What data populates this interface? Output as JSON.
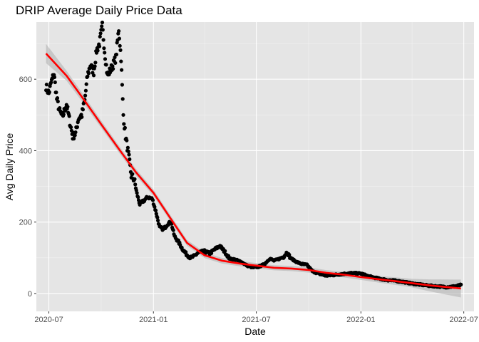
{
  "chart_data": {
    "type": "scatter",
    "title": "DRIP Average Daily Price Data",
    "xlabel": "Date",
    "ylabel": "Avg Daily Price",
    "x_ticks": [
      "2020-07",
      "2021-01",
      "2021-07",
      "2022-01",
      "2022-07"
    ],
    "y_ticks": [
      0,
      200,
      400,
      600
    ],
    "xlim": [
      "2020-06-09",
      "2022-07-19"
    ],
    "ylim": [
      -50,
      760
    ],
    "grid": true,
    "colors": {
      "panel": "#e5e5e5",
      "grid_major": "#ffffff",
      "points": "#000000",
      "smooth": "#ff0000",
      "band": "#b3b3b3"
    },
    "points_anchors": [
      [
        "2020-06-26",
        580
      ],
      [
        "2020-07-01",
        560
      ],
      [
        "2020-07-05",
        590
      ],
      [
        "2020-07-10",
        615
      ],
      [
        "2020-07-15",
        545
      ],
      [
        "2020-07-20",
        510
      ],
      [
        "2020-07-25",
        495
      ],
      [
        "2020-08-01",
        530
      ],
      [
        "2020-08-07",
        480
      ],
      [
        "2020-08-12",
        440
      ],
      [
        "2020-08-17",
        448
      ],
      [
        "2020-08-22",
        490
      ],
      [
        "2020-08-28",
        500
      ],
      [
        "2020-09-02",
        540
      ],
      [
        "2020-09-07",
        610
      ],
      [
        "2020-09-12",
        640
      ],
      [
        "2020-09-18",
        620
      ],
      [
        "2020-09-23",
        680
      ],
      [
        "2020-09-28",
        700
      ],
      [
        "2020-10-03",
        750
      ],
      [
        "2020-10-07",
        680
      ],
      [
        "2020-10-12",
        610
      ],
      [
        "2020-10-17",
        625
      ],
      [
        "2020-10-22",
        640
      ],
      [
        "2020-10-27",
        660
      ],
      [
        "2020-11-01",
        740
      ],
      [
        "2020-11-05",
        660
      ],
      [
        "2020-11-09",
        500
      ],
      [
        "2020-11-13",
        440
      ],
      [
        "2020-11-18",
        390
      ],
      [
        "2020-11-23",
        330
      ],
      [
        "2020-11-28",
        320
      ],
      [
        "2020-12-03",
        280
      ],
      [
        "2020-12-08",
        250
      ],
      [
        "2020-12-15",
        260
      ],
      [
        "2020-12-22",
        270
      ],
      [
        "2020-12-30",
        265
      ],
      [
        "2021-01-06",
        225
      ],
      [
        "2021-01-12",
        185
      ],
      [
        "2021-01-19",
        180
      ],
      [
        "2021-01-26",
        195
      ],
      [
        "2021-02-01",
        200
      ],
      [
        "2021-02-07",
        160
      ],
      [
        "2021-02-14",
        145
      ],
      [
        "2021-02-21",
        125
      ],
      [
        "2021-02-28",
        110
      ],
      [
        "2021-03-07",
        100
      ],
      [
        "2021-03-14",
        105
      ],
      [
        "2021-03-21",
        115
      ],
      [
        "2021-04-01",
        118
      ],
      [
        "2021-04-10",
        112
      ],
      [
        "2021-04-20",
        125
      ],
      [
        "2021-04-28",
        133
      ],
      [
        "2021-05-06",
        118
      ],
      [
        "2021-05-15",
        98
      ],
      [
        "2021-05-25",
        95
      ],
      [
        "2021-06-05",
        88
      ],
      [
        "2021-06-15",
        78
      ],
      [
        "2021-06-25",
        73
      ],
      [
        "2021-07-05",
        75
      ],
      [
        "2021-07-15",
        82
      ],
      [
        "2021-07-25",
        98
      ],
      [
        "2021-08-01",
        92
      ],
      [
        "2021-08-10",
        97
      ],
      [
        "2021-08-18",
        103
      ],
      [
        "2021-08-24",
        116
      ],
      [
        "2021-08-30",
        100
      ],
      [
        "2021-09-08",
        90
      ],
      [
        "2021-09-18",
        83
      ],
      [
        "2021-09-28",
        80
      ],
      [
        "2021-10-08",
        62
      ],
      [
        "2021-10-20",
        55
      ],
      [
        "2021-11-01",
        50
      ],
      [
        "2021-11-15",
        52
      ],
      [
        "2021-12-01",
        55
      ],
      [
        "2021-12-15",
        57
      ],
      [
        "2022-01-01",
        56
      ],
      [
        "2022-01-15",
        48
      ],
      [
        "2022-02-01",
        42
      ],
      [
        "2022-02-15",
        38
      ],
      [
        "2022-03-01",
        36
      ],
      [
        "2022-03-15",
        33
      ],
      [
        "2022-04-01",
        28
      ],
      [
        "2022-04-15",
        25
      ],
      [
        "2022-05-01",
        22
      ],
      [
        "2022-05-15",
        20
      ],
      [
        "2022-06-01",
        18
      ],
      [
        "2022-06-15",
        20
      ],
      [
        "2022-06-26",
        24
      ]
    ],
    "smooth_line": [
      [
        "2020-06-26",
        672
      ],
      [
        "2020-08-01",
        610
      ],
      [
        "2020-09-01",
        542
      ],
      [
        "2020-10-01",
        474
      ],
      [
        "2020-11-01",
        405
      ],
      [
        "2020-12-01",
        340
      ],
      [
        "2021-01-01",
        282
      ],
      [
        "2021-02-01",
        208
      ],
      [
        "2021-03-01",
        142
      ],
      [
        "2021-04-01",
        107
      ],
      [
        "2021-05-01",
        92
      ],
      [
        "2021-06-01",
        84
      ],
      [
        "2021-07-01",
        78
      ],
      [
        "2021-08-01",
        72
      ],
      [
        "2021-09-01",
        70
      ],
      [
        "2021-10-01",
        66
      ],
      [
        "2021-11-01",
        58
      ],
      [
        "2021-12-01",
        53
      ],
      [
        "2022-01-01",
        46
      ],
      [
        "2022-02-01",
        40
      ],
      [
        "2022-03-01",
        35
      ],
      [
        "2022-04-01",
        29
      ],
      [
        "2022-05-01",
        23
      ],
      [
        "2022-06-01",
        18
      ],
      [
        "2022-06-26",
        14
      ]
    ],
    "band_half_width": [
      [
        "2020-06-26",
        27
      ],
      [
        "2020-08-01",
        14
      ],
      [
        "2020-10-01",
        10
      ],
      [
        "2021-01-01",
        9
      ],
      [
        "2021-04-01",
        8
      ],
      [
        "2021-08-01",
        7
      ],
      [
        "2022-01-01",
        8
      ],
      [
        "2022-04-01",
        12
      ],
      [
        "2022-06-26",
        25
      ]
    ]
  }
}
